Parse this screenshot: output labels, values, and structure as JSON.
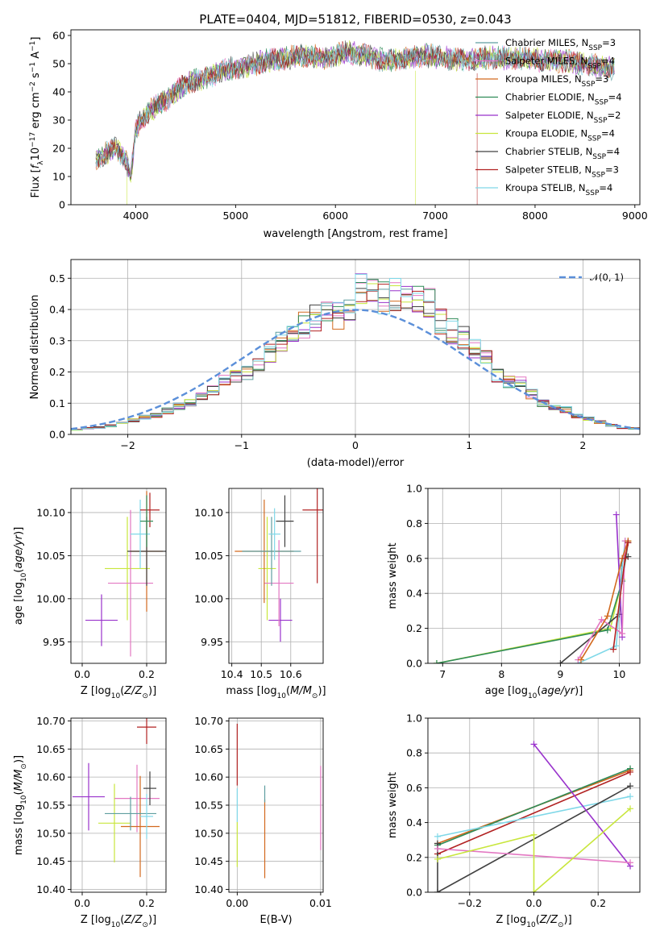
{
  "figure": {
    "title": "PLATE=0404, MJD=51812, FIBERID=0530, z=0.043"
  },
  "colors": {
    "Chabrier MILES": "#5f9ea0",
    "Salpeter MILES": "#e377c2",
    "Kroupa MILES": "#d2691e",
    "Chabrier ELODIE": "#2e8b57",
    "Salpeter ELODIE": "#9932cc",
    "Kroupa ELODIE": "#c8e63c",
    "Chabrier STELIB": "#404040",
    "Salpeter STELIB": "#b22222",
    "Kroupa STELIB": "#7fd8e8",
    "normal": "#5b8fd9",
    "grid": "#b0b0b0"
  },
  "chart_data": [
    {
      "id": "spectrum",
      "type": "line",
      "title": "PLATE=0404, MJD=51812, FIBERID=0530, z=0.043",
      "xlabel": "wavelength [Angstrom, rest frame]",
      "ylabel": "Flux [f_λ 10^-17 erg cm^-2 s^-1 A^-1]",
      "xlim": [
        3350,
        9050
      ],
      "ylim": [
        0,
        62
      ],
      "xticks": [
        "4000",
        "5000",
        "6000",
        "7000",
        "8000",
        "9000"
      ],
      "yticks": [
        "0",
        "10",
        "20",
        "30",
        "40",
        "50",
        "60"
      ],
      "grid": false,
      "legend_position": "top-right",
      "legend": [
        "Chabrier MILES, N_SSP=3",
        "Salpeter MILES, N_SSP=4",
        "Kroupa MILES, N_SSP=3",
        "Chabrier ELODIE, N_SSP=4",
        "Salpeter ELODIE, N_SSP=2",
        "Kroupa ELODIE, N_SSP=4",
        "Chabrier STELIB, N_SSP=4",
        "Salpeter STELIB, N_SSP=3",
        "Kroupa STELIB, N_SSP=4"
      ],
      "continuum": {
        "x": [
          3600,
          3700,
          3800,
          3900,
          3950,
          4000,
          4100,
          4200,
          4300,
          4500,
          4700,
          4900,
          5100,
          5300,
          5500,
          5700,
          5900,
          6100,
          6300,
          6500,
          6700,
          6900,
          7100,
          7300,
          7500,
          7700,
          7900,
          8100,
          8300,
          8500,
          8700,
          8800
        ],
        "y": [
          16,
          18,
          20,
          16,
          10,
          27,
          32,
          35,
          37,
          43,
          45,
          48,
          49,
          51,
          52,
          53,
          52,
          54,
          53,
          51,
          52,
          53,
          52,
          51,
          52,
          52,
          52,
          51,
          51,
          50,
          49,
          48
        ]
      },
      "dips": [
        {
          "x": 3910,
          "y": 0,
          "series": "Kroupa ELODIE, N_SSP=4"
        },
        {
          "x": 6800,
          "y": 0,
          "series": "Kroupa ELODIE, N_SSP=4"
        },
        {
          "x": 7420,
          "y": 0,
          "series": "Salpeter STELIB, N_SSP=3"
        }
      ]
    },
    {
      "id": "residuals",
      "type": "bar",
      "xlabel": "(data-model)/error",
      "ylabel": "Normed distribution",
      "xlim": [
        -2.5,
        2.5
      ],
      "ylim": [
        0,
        0.56
      ],
      "xticks": [
        "−2",
        "−1",
        "0",
        "1",
        "2"
      ],
      "yticks": [
        "0.0",
        "0.1",
        "0.2",
        "0.3",
        "0.4",
        "0.5"
      ],
      "grid": true,
      "legend_position": "top-right",
      "legend": [
        "𝒩(0, 1)"
      ],
      "bin_width": 0.1,
      "base_histogram": [
        0.015,
        0.02,
        0.022,
        0.028,
        0.035,
        0.045,
        0.055,
        0.06,
        0.075,
        0.09,
        0.1,
        0.12,
        0.14,
        0.17,
        0.19,
        0.2,
        0.22,
        0.26,
        0.3,
        0.33,
        0.35,
        0.37,
        0.38,
        0.38,
        0.4,
        0.47,
        0.45,
        0.44,
        0.45,
        0.44,
        0.43,
        0.42,
        0.36,
        0.33,
        0.31,
        0.28,
        0.26,
        0.19,
        0.17,
        0.17,
        0.13,
        0.1,
        0.09,
        0.08,
        0.06,
        0.05,
        0.04,
        0.03,
        0.02,
        0.02
      ]
    },
    {
      "id": "age-vs-Z",
      "type": "scatter",
      "xlabel": "Z [log10(Z/Z☉)]",
      "ylabel": "age  [log10(age/yr)]",
      "xlim": [
        -0.035,
        0.26
      ],
      "ylim": [
        9.925,
        10.128
      ],
      "xticks": [
        {
          "v": 0.0,
          "t": "0.0"
        },
        {
          "v": 0.2,
          "t": "0.2"
        }
      ],
      "yticks": [
        {
          "v": 9.95,
          "t": "9.95"
        },
        {
          "v": 10.0,
          "t": "10.00"
        },
        {
          "v": 10.05,
          "t": "10.05"
        },
        {
          "v": 10.1,
          "t": "10.10"
        }
      ],
      "grid": true,
      "points": [
        {
          "series": "Salpeter ELODIE",
          "x": 0.06,
          "y": 9.975,
          "xerr": 0.05,
          "yerr": 0.03
        },
        {
          "series": "Kroupa ELODIE",
          "x": 0.14,
          "y": 10.035,
          "xerr": 0.07,
          "yerr": 0.06
        },
        {
          "series": "Salpeter MILES",
          "x": 0.15,
          "y": 10.018,
          "xerr": 0.07,
          "yerr": 0.085
        },
        {
          "series": "Kroupa MILES",
          "x": 0.2,
          "y": 10.055,
          "xerr": 0.05,
          "yerr": 0.07
        },
        {
          "series": "Chabrier STELIB",
          "x": 0.2,
          "y": 10.055,
          "xerr": 0.06,
          "yerr": 0.04
        },
        {
          "series": "Kroupa STELIB",
          "x": 0.18,
          "y": 10.075,
          "xerr": 0.03,
          "yerr": 0.04
        },
        {
          "series": "Salpeter STELIB",
          "x": 0.21,
          "y": 10.103,
          "xerr": 0.03,
          "yerr": 0.02
        },
        {
          "series": "Chabrier ELODIE",
          "x": 0.2,
          "y": 10.09,
          "xerr": 0.02,
          "yerr": 0.03
        }
      ]
    },
    {
      "id": "age-vs-mass",
      "type": "scatter",
      "xlabel": "mass [log10(M/M☉)]",
      "ylabel": "",
      "xlim": [
        10.39,
        10.71
      ],
      "ylim": [
        9.925,
        10.128
      ],
      "xticks": [
        {
          "v": 10.4,
          "t": "10.4"
        },
        {
          "v": 10.5,
          "t": "10.5"
        },
        {
          "v": 10.6,
          "t": "10.6"
        }
      ],
      "yticks": [
        {
          "v": 9.95,
          "t": "9.95"
        },
        {
          "v": 10.0,
          "t": "10.00"
        },
        {
          "v": 10.05,
          "t": "10.05"
        },
        {
          "v": 10.1,
          "t": "10.10"
        }
      ],
      "grid": true,
      "points": [
        {
          "series": "Salpeter ELODIE",
          "x": 10.565,
          "y": 9.975,
          "xerr": 0.04,
          "yerr": 0.025
        },
        {
          "series": "Kroupa ELODIE",
          "x": 10.52,
          "y": 10.035,
          "xerr": 0.03,
          "yerr": 0.06
        },
        {
          "series": "Salpeter MILES",
          "x": 10.56,
          "y": 10.018,
          "xerr": 0.05,
          "yerr": 0.05
        },
        {
          "series": "Kroupa MILES",
          "x": 10.51,
          "y": 10.055,
          "xerr": 0.1,
          "yerr": 0.06
        },
        {
          "series": "Chabrier MILES",
          "x": 10.535,
          "y": 10.055,
          "xerr": 0.1,
          "yerr": 0.04
        },
        {
          "series": "Kroupa STELIB",
          "x": 10.545,
          "y": 10.075,
          "xerr": 0.02,
          "yerr": 0.03
        },
        {
          "series": "Chabrier STELIB",
          "x": 10.58,
          "y": 10.09,
          "xerr": 0.03,
          "yerr": 0.03
        },
        {
          "series": "Salpeter STELIB",
          "x": 10.69,
          "y": 10.103,
          "xerr": 0.05,
          "yerr": 0.085
        }
      ]
    },
    {
      "id": "weight-vs-age",
      "type": "line",
      "xlabel": "age  [log10(age/yr)]",
      "ylabel": "mass weight",
      "xlim": [
        6.75,
        10.35
      ],
      "ylim": [
        0,
        1.0
      ],
      "xticks": [
        {
          "v": 7,
          "t": "7"
        },
        {
          "v": 8,
          "t": "8"
        },
        {
          "v": 9,
          "t": "9"
        },
        {
          "v": 10,
          "t": "10"
        }
      ],
      "yticks": [
        {
          "v": 0.0,
          "t": "0.0"
        },
        {
          "v": 0.2,
          "t": "0.2"
        },
        {
          "v": 0.4,
          "t": "0.4"
        },
        {
          "v": 0.6,
          "t": "0.6"
        },
        {
          "v": 0.8,
          "t": "0.8"
        },
        {
          "v": 1.0,
          "t": "1.0"
        }
      ],
      "grid": true,
      "series": [
        {
          "name": "Kroupa ELODIE",
          "x": [
            6.9,
            9.85,
            10.05,
            10.15
          ],
          "y": [
            0.0,
            0.2,
            0.48,
            0.7
          ]
        },
        {
          "name": "Chabrier ELODIE",
          "x": [
            6.9,
            9.8,
            10.05,
            10.15
          ],
          "y": [
            0.0,
            0.19,
            0.47,
            0.69
          ]
        },
        {
          "name": "Chabrier STELIB",
          "x": [
            9.0,
            10.0,
            10.05,
            10.15
          ],
          "y": [
            0.0,
            0.28,
            0.6,
            0.61
          ]
        },
        {
          "name": "Salpeter ELODIE",
          "x": [
            9.95,
            10.05
          ],
          "y": [
            0.85,
            0.15
          ]
        },
        {
          "name": "Kroupa STELIB",
          "x": [
            9.3,
            9.95,
            10.05,
            10.1
          ],
          "y": [
            0.0,
            0.1,
            0.55,
            0.7
          ]
        },
        {
          "name": "Salpeter MILES",
          "x": [
            9.3,
            9.7,
            10.05,
            10.1
          ],
          "y": [
            0.02,
            0.25,
            0.17,
            0.7
          ]
        },
        {
          "name": "Kroupa MILES",
          "x": [
            9.35,
            9.8,
            10.05,
            10.15
          ],
          "y": [
            0.02,
            0.27,
            0.6,
            0.7
          ]
        },
        {
          "name": "Salpeter STELIB",
          "x": [
            9.9,
            10.1,
            10.15
          ],
          "y": [
            0.08,
            0.6,
            0.69
          ]
        }
      ]
    },
    {
      "id": "mass-vs-Z",
      "type": "scatter",
      "xlabel": "Z [log10(Z/Z☉)]",
      "ylabel": "mass [log10(M/M☉)]",
      "xlim": [
        -0.035,
        0.26
      ],
      "ylim": [
        10.395,
        10.705
      ],
      "xticks": [
        {
          "v": 0.0,
          "t": "0.0"
        },
        {
          "v": 0.2,
          "t": "0.2"
        }
      ],
      "yticks": [
        {
          "v": 10.4,
          "t": "10.40"
        },
        {
          "v": 10.45,
          "t": "10.45"
        },
        {
          "v": 10.5,
          "t": "10.50"
        },
        {
          "v": 10.55,
          "t": "10.55"
        },
        {
          "v": 10.6,
          "t": "10.60"
        },
        {
          "v": 10.65,
          "t": "10.65"
        },
        {
          "v": 10.7,
          "t": "10.70"
        }
      ],
      "grid": true,
      "points": [
        {
          "series": "Salpeter ELODIE",
          "x": 0.02,
          "y": 10.565,
          "xerr": 0.05,
          "yerr": 0.06
        },
        {
          "series": "Kroupa ELODIE",
          "x": 0.1,
          "y": 10.518,
          "xerr": 0.05,
          "yerr": 0.07
        },
        {
          "series": "Salpeter MILES",
          "x": 0.17,
          "y": 10.562,
          "xerr": 0.07,
          "yerr": 0.06
        },
        {
          "series": "Kroupa MILES",
          "x": 0.18,
          "y": 10.512,
          "xerr": 0.06,
          "yerr": 0.09
        },
        {
          "series": "Chabrier MILES",
          "x": 0.15,
          "y": 10.535,
          "xerr": 0.08,
          "yerr": 0.03
        },
        {
          "series": "Chabrier STELIB",
          "x": 0.21,
          "y": 10.58,
          "xerr": 0.02,
          "yerr": 0.03
        },
        {
          "series": "Salpeter STELIB",
          "x": 0.2,
          "y": 10.689,
          "xerr": 0.03,
          "yerr": 0.03
        },
        {
          "series": "Kroupa STELIB",
          "x": 0.2,
          "y": 10.53,
          "xerr": 0.02,
          "yerr": 0.04
        }
      ]
    },
    {
      "id": "mass-vs-ebv",
      "type": "scatter",
      "xlabel": "E(B-V)",
      "ylabel": "",
      "xlim": [
        -0.001,
        0.0103
      ],
      "ylim": [
        10.395,
        10.705
      ],
      "xticks": [
        {
          "v": 0.0,
          "t": "0.00"
        },
        {
          "v": 0.01,
          "t": "0.01"
        }
      ],
      "yticks": [
        {
          "v": 10.4,
          "t": "10.40"
        },
        {
          "v": 10.45,
          "t": "10.45"
        },
        {
          "v": 10.5,
          "t": "10.50"
        },
        {
          "v": 10.55,
          "t": "10.55"
        },
        {
          "v": 10.6,
          "t": "10.60"
        },
        {
          "v": 10.65,
          "t": "10.65"
        },
        {
          "v": 10.7,
          "t": "10.70"
        }
      ],
      "grid": true,
      "points": [
        {
          "series": "Salpeter STELIB",
          "x": 0.0,
          "y": 10.64,
          "xerr": 0,
          "yerr": 0.055
        },
        {
          "series": "Kroupa ELODIE",
          "x": 0.0,
          "y": 10.48,
          "xerr": 0,
          "yerr": 0.04
        },
        {
          "series": "Kroupa STELIB",
          "x": 0.0,
          "y": 10.55,
          "xerr": 0,
          "yerr": 0.03
        },
        {
          "series": "Kroupa MILES",
          "x": 0.0033,
          "y": 10.49,
          "xerr": 0,
          "yerr": 0.07
        },
        {
          "series": "Chabrier MILES",
          "x": 0.0033,
          "y": 10.57,
          "xerr": 0,
          "yerr": 0.015
        },
        {
          "series": "Salpeter MILES",
          "x": 0.01,
          "y": 10.545,
          "xerr": 0,
          "yerr": 0.075
        }
      ]
    },
    {
      "id": "weight-vs-Z",
      "type": "line",
      "xlabel": "Z [log10(Z/Z☉)]",
      "ylabel": "mass weight",
      "xlim": [
        -0.33,
        0.33
      ],
      "ylim": [
        0,
        1.0
      ],
      "xticks": [
        {
          "v": -0.2,
          "t": "−0.2"
        },
        {
          "v": 0.0,
          "t": "0.0"
        },
        {
          "v": 0.2,
          "t": "0.2"
        }
      ],
      "yticks": [
        {
          "v": 0.0,
          "t": "0.0"
        },
        {
          "v": 0.2,
          "t": "0.2"
        },
        {
          "v": 0.4,
          "t": "0.4"
        },
        {
          "v": 0.6,
          "t": "0.6"
        },
        {
          "v": 0.8,
          "t": "0.8"
        },
        {
          "v": 1.0,
          "t": "1.0"
        }
      ],
      "grid": true,
      "series": [
        {
          "name": "Kroupa MILES",
          "x": [
            -0.3,
            0.3
          ],
          "y": [
            0.28,
            0.7
          ]
        },
        {
          "name": "Chabrier ELODIE",
          "x": [
            -0.3,
            0.3
          ],
          "y": [
            0.27,
            0.71
          ]
        },
        {
          "name": "Salpeter STELIB",
          "x": [
            -0.3,
            0.3
          ],
          "y": [
            0.22,
            0.69
          ]
        },
        {
          "name": "Kroupa STELIB",
          "x": [
            -0.3,
            0.3
          ],
          "y": [
            0.32,
            0.55
          ]
        },
        {
          "name": "Chabrier STELIB",
          "x": [
            -0.3,
            -0.3,
            0.3
          ],
          "y": [
            0.28,
            0.0,
            0.61
          ]
        },
        {
          "name": "Salpeter ELODIE",
          "x": [
            0.0,
            0.3
          ],
          "y": [
            0.85,
            0.15
          ]
        },
        {
          "name": "Salpeter MILES",
          "x": [
            -0.3,
            0.3
          ],
          "y": [
            0.25,
            0.17
          ]
        },
        {
          "name": "Kroupa ELODIE",
          "x": [
            -0.3,
            0.0,
            0.0,
            0.3
          ],
          "y": [
            0.19,
            0.33,
            0.0,
            0.48
          ]
        }
      ]
    }
  ]
}
